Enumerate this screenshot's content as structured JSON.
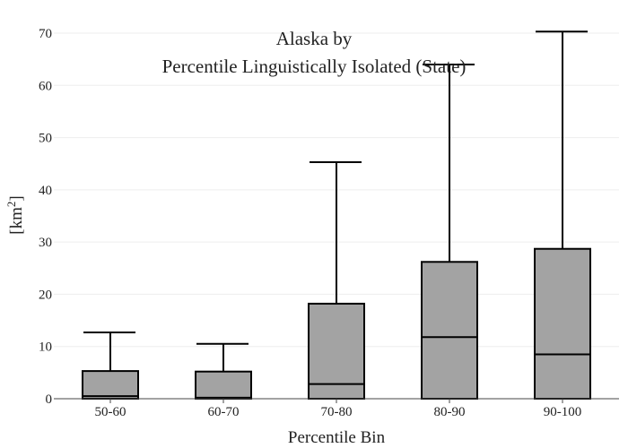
{
  "chart_data": {
    "type": "box",
    "title_lines": [
      "Alaska  by",
      "Percentile Linguistically Isolated (State)"
    ],
    "xlabel": "Percentile Bin",
    "ylabel": "[km²]",
    "ylabel_base": "[km",
    "ylabel_sup": "2",
    "ylabel_end": "]",
    "ylim": [
      0,
      70
    ],
    "yticks": [
      0,
      10,
      20,
      30,
      40,
      50,
      60,
      70
    ],
    "grid": true,
    "categories": [
      "50-60",
      "60-70",
      "70-80",
      "80-90",
      "90-100"
    ],
    "boxes": [
      {
        "category": "50-60",
        "min": 0,
        "q1": 0,
        "median": 0.5,
        "q3": 5.3,
        "max": 12.7
      },
      {
        "category": "60-70",
        "min": 0,
        "q1": 0,
        "median": 0.2,
        "q3": 5.2,
        "max": 10.5
      },
      {
        "category": "70-80",
        "min": 0,
        "q1": 0,
        "median": 2.8,
        "q3": 18.2,
        "max": 45.3
      },
      {
        "category": "80-90",
        "min": 0,
        "q1": 0,
        "median": 11.8,
        "q3": 26.2,
        "max": 64.0
      },
      {
        "category": "90-100",
        "min": 0,
        "q1": 0,
        "median": 8.5,
        "q3": 28.7,
        "max": 70.3
      }
    ],
    "colors": {
      "box_fill": "#a3a3a3",
      "box_stroke": "#000000",
      "grid": "#eeeeee",
      "axis": "#444444",
      "text": "#222222"
    }
  }
}
